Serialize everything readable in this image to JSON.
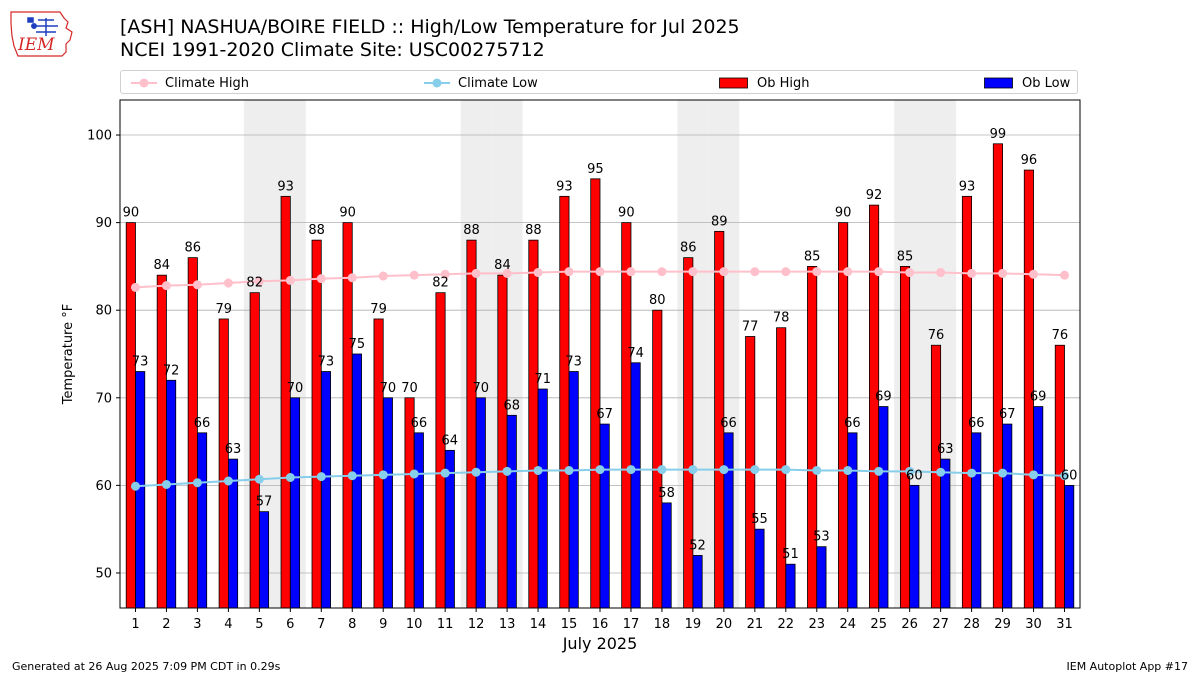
{
  "logo": {
    "text": "IEM",
    "colors": {
      "text": "#d62728",
      "outline": "#d62728",
      "symbol": "#1f3fbf"
    }
  },
  "title": {
    "line1": "[ASH] NASHUA/BOIRE FIELD :: High/Low Temperature for Jul 2025",
    "line2": "NCEI 1991-2020 Climate Site: USC00275712"
  },
  "legend": {
    "climate_high": "Climate High",
    "climate_low": "Climate Low",
    "ob_high": "Ob High",
    "ob_low": "Ob Low"
  },
  "colors": {
    "ob_high": "#ff0000",
    "ob_low": "#0000ff",
    "climate_high": "#ffc0cb",
    "climate_low": "#87ceeb",
    "weekend_shade": "#eeeeee",
    "grid": "#b0b0b0"
  },
  "footer": {
    "left": "Generated at 26 Aug 2025 7:09 PM CDT in 0.29s",
    "right": "IEM Autoplot App #17"
  },
  "chart_data": {
    "type": "bar",
    "xlabel": "July 2025",
    "ylabel": "Temperature °F",
    "ylim": [
      46,
      104
    ],
    "yticks": [
      50,
      60,
      70,
      80,
      90,
      100
    ],
    "grid": true,
    "legend_position": "top",
    "categories": [
      "1",
      "2",
      "3",
      "4",
      "5",
      "6",
      "7",
      "8",
      "9",
      "10",
      "11",
      "12",
      "13",
      "14",
      "15",
      "16",
      "17",
      "18",
      "19",
      "20",
      "21",
      "22",
      "23",
      "24",
      "25",
      "26",
      "27",
      "28",
      "29",
      "30",
      "31"
    ],
    "shaded_days": [
      5,
      6,
      12,
      13,
      19,
      20,
      26,
      27
    ],
    "series": [
      {
        "name": "Ob High",
        "kind": "bar",
        "values": [
          90,
          84,
          86,
          79,
          82,
          93,
          88,
          90,
          79,
          70,
          82,
          88,
          84,
          88,
          93,
          95,
          90,
          80,
          86,
          89,
          77,
          78,
          85,
          90,
          92,
          85,
          76,
          93,
          99,
          96,
          76
        ]
      },
      {
        "name": "Ob Low",
        "kind": "bar",
        "values": [
          73,
          72,
          66,
          63,
          57,
          70,
          73,
          75,
          70,
          66,
          64,
          70,
          68,
          71,
          73,
          67,
          74,
          58,
          52,
          66,
          55,
          51,
          53,
          66,
          69,
          60,
          63,
          66,
          67,
          69,
          60
        ]
      },
      {
        "name": "Climate High",
        "kind": "line",
        "values": [
          82.6,
          82.8,
          82.9,
          83.1,
          83.3,
          83.4,
          83.6,
          83.7,
          83.9,
          84.0,
          84.1,
          84.2,
          84.2,
          84.3,
          84.4,
          84.4,
          84.4,
          84.4,
          84.4,
          84.4,
          84.4,
          84.4,
          84.4,
          84.4,
          84.4,
          84.3,
          84.3,
          84.2,
          84.2,
          84.1,
          84.0
        ]
      },
      {
        "name": "Climate Low",
        "kind": "line",
        "values": [
          59.9,
          60.1,
          60.3,
          60.5,
          60.7,
          60.9,
          61.0,
          61.1,
          61.2,
          61.3,
          61.4,
          61.5,
          61.6,
          61.7,
          61.7,
          61.8,
          61.8,
          61.8,
          61.8,
          61.8,
          61.8,
          61.8,
          61.7,
          61.7,
          61.6,
          61.6,
          61.5,
          61.4,
          61.4,
          61.2,
          61.1
        ]
      }
    ]
  }
}
